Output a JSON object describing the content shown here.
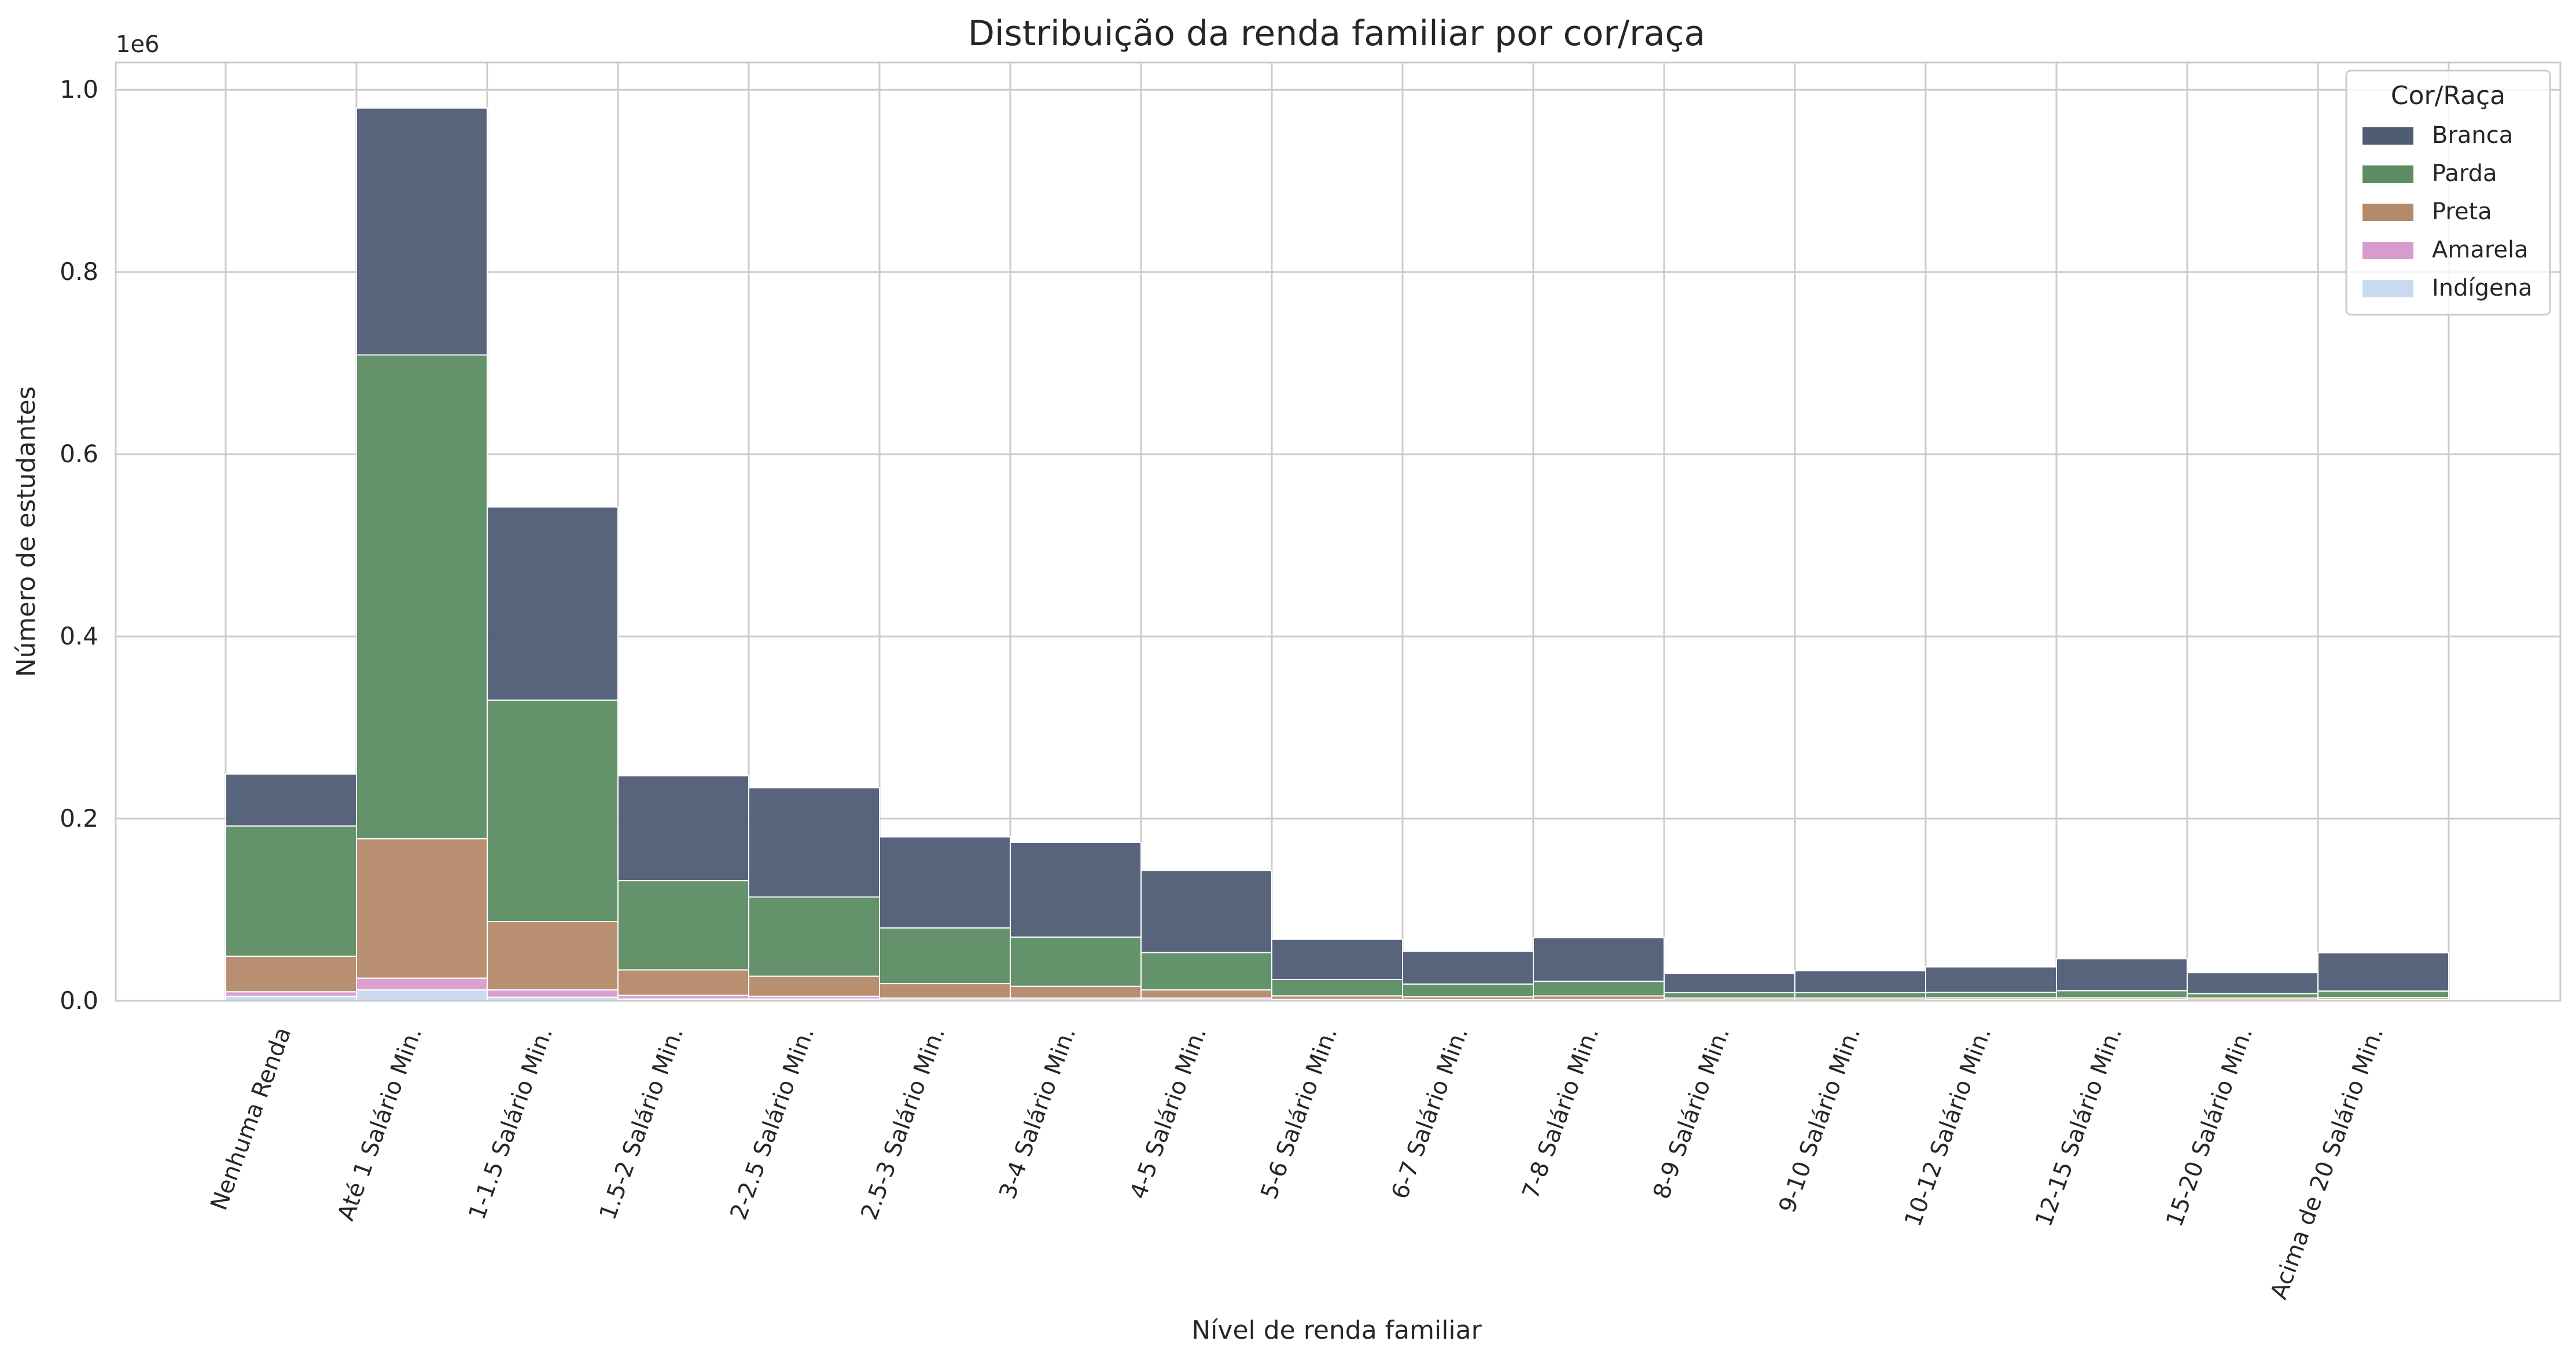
{
  "chart_data": {
    "type": "bar",
    "stacked": true,
    "title": "Distribuição da renda familiar por cor/raça",
    "xlabel": "Nível de renda familiar",
    "ylabel": "Número de estudantes",
    "y_offset_label": "1e6",
    "ylim": [
      0,
      1.03
    ],
    "yticks": [
      0.0,
      0.2,
      0.4,
      0.6,
      0.8,
      1.0
    ],
    "ytick_labels": [
      "0.0",
      "0.2",
      "0.4",
      "0.6",
      "0.8",
      "1.0"
    ],
    "grid": true,
    "legend_position": "top-right",
    "legend_title": "Cor/Raça",
    "categories": [
      "Nenhuma Renda",
      "Até 1 Salário Min.",
      "1-1.5 Salário Min.",
      "1.5-2 Salário Min.",
      "2-2.5 Salário Min.",
      "2.5-3 Salário Min.",
      "3-4 Salário Min.",
      "4-5 Salário Min.",
      "5-6 Salário Min.",
      "6-7 Salário Min.",
      "7-8 Salário Min.",
      "8-9 Salário Min.",
      "9-10 Salário Min.",
      "10-12 Salário Min.",
      "12-15 Salário Min.",
      "15-20 Salário Min.",
      "Acima de 20 Salário Min."
    ],
    "series": [
      {
        "name": "Indígena",
        "color": "#c9d9f0",
        "values": [
          0.005,
          0.012,
          0.004,
          0.002,
          0.002,
          0.001,
          0.001,
          0.001,
          0.0005,
          0.0004,
          0.0004,
          0.0002,
          0.0002,
          0.0002,
          0.0002,
          0.0002,
          0.0002
        ]
      },
      {
        "name": "Amarela",
        "color": "#d89ccc",
        "values": [
          0.005,
          0.013,
          0.008,
          0.004,
          0.003,
          0.002,
          0.002,
          0.002,
          0.001,
          0.001,
          0.001,
          0.0008,
          0.0008,
          0.001,
          0.001,
          0.0008,
          0.0015
        ]
      },
      {
        "name": "Preta",
        "color": "#b48a69",
        "values": [
          0.039,
          0.153,
          0.075,
          0.028,
          0.022,
          0.016,
          0.013,
          0.009,
          0.004,
          0.003,
          0.004,
          0.002,
          0.002,
          0.002,
          0.002,
          0.002,
          0.002
        ]
      },
      {
        "name": "Parda",
        "color": "#5b8c63",
        "values": [
          0.143,
          0.531,
          0.243,
          0.098,
          0.087,
          0.061,
          0.054,
          0.041,
          0.018,
          0.014,
          0.016,
          0.006,
          0.006,
          0.006,
          0.008,
          0.005,
          0.007
        ]
      },
      {
        "name": "Branca",
        "color": "#4f5c74",
        "values": [
          0.057,
          0.271,
          0.212,
          0.115,
          0.12,
          0.1,
          0.104,
          0.09,
          0.044,
          0.036,
          0.048,
          0.021,
          0.024,
          0.028,
          0.035,
          0.023,
          0.042
        ]
      }
    ],
    "legend_order": [
      "Branca",
      "Parda",
      "Preta",
      "Amarela",
      "Indígena"
    ]
  }
}
